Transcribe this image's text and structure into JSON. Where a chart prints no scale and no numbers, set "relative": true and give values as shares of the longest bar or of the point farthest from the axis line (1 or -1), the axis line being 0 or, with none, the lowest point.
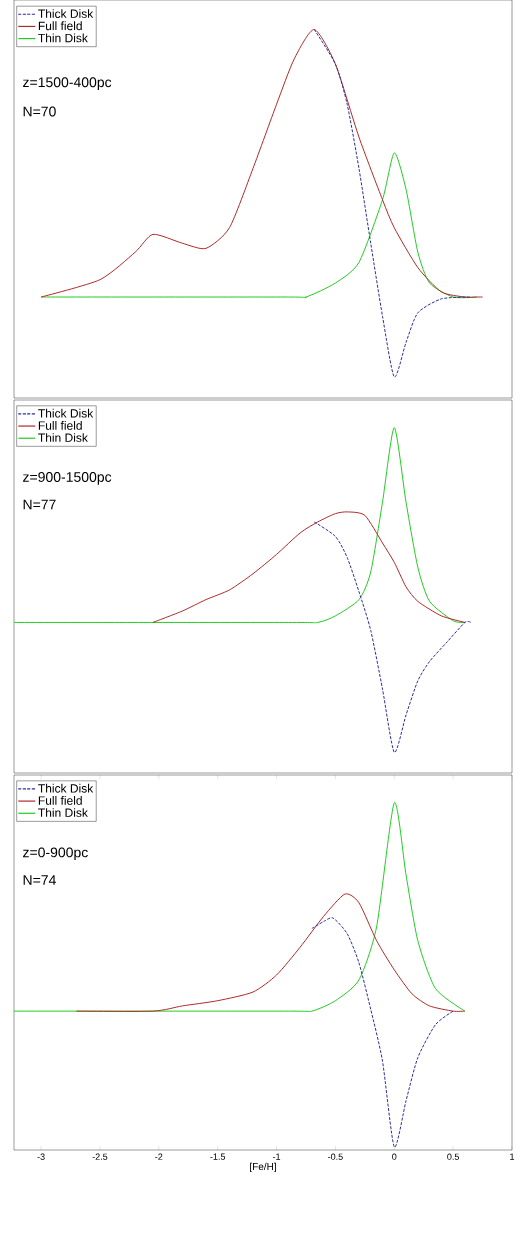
{
  "chart_data": [
    {
      "type": "line",
      "relative": true,
      "xlim": [
        -3.23,
        1
      ],
      "tick_labels": false,
      "legend": "top left",
      "annotations": [
        "z=1500-400pc",
        "N=70"
      ],
      "series": [
        {
          "name": "Thick Disk",
          "color": "#2c2c9e",
          "line_style": "dashed",
          "x": [
            -0.68,
            -0.5,
            -0.4,
            -0.3,
            -0.2,
            -0.1,
            0,
            0.1,
            0.2,
            0.4,
            0.65
          ],
          "values": [
            1.0,
            0.906,
            0.797,
            0.623,
            0.42,
            0.222,
            0.057,
            0.151,
            0.231,
            0.269,
            0.274
          ]
        },
        {
          "name": "Full field",
          "color": "#b02a2a",
          "line_style": "solid",
          "x": [
            -3.0,
            -2.5,
            -2.2,
            -2.05,
            -1.8,
            -1.6,
            -1.4,
            -1.2,
            -1.0,
            -0.85,
            -0.68,
            -0.5,
            -0.3,
            -0.1,
            0,
            0.2,
            0.4,
            0.6,
            0.7,
            0.75
          ],
          "values": [
            0.274,
            0.321,
            0.396,
            0.444,
            0.42,
            0.406,
            0.462,
            0.623,
            0.797,
            0.92,
            1.0,
            0.906,
            0.708,
            0.538,
            0.462,
            0.354,
            0.288,
            0.274,
            0.274,
            0.274
          ]
        },
        {
          "name": "Thin Disk",
          "color": "#22cc22",
          "line_style": "solid",
          "x": [
            -3.0,
            -0.9,
            -0.75,
            -0.5,
            -0.3,
            -0.1,
            0,
            0.1,
            0.2,
            0.3,
            0.5,
            0.7
          ],
          "values": [
            0.274,
            0.274,
            0.274,
            0.312,
            0.368,
            0.538,
            0.665,
            0.566,
            0.396,
            0.312,
            0.274,
            0.274
          ]
        }
      ]
    },
    {
      "type": "line",
      "relative": true,
      "xlim": [
        -3.23,
        1
      ],
      "tick_labels": false,
      "legend": "top left",
      "annotations": [
        "z=900-1500pc",
        "N=77"
      ],
      "series": [
        {
          "name": "Thick Disk",
          "color": "#2c2c9e",
          "line_style": "dashed",
          "x": [
            -0.68,
            -0.5,
            -0.4,
            -0.3,
            -0.2,
            -0.1,
            0,
            0.1,
            0.2,
            0.3,
            0.45,
            0.6,
            0.65
          ],
          "values": [
            0.727,
            0.685,
            0.624,
            0.525,
            0.413,
            0.243,
            0.06,
            0.168,
            0.267,
            0.323,
            0.38,
            0.436,
            0.436
          ]
        },
        {
          "name": "Full field",
          "color": "#b02a2a",
          "line_style": "solid",
          "x": [
            -2.05,
            -1.8,
            -1.6,
            -1.4,
            -1.2,
            -1.0,
            -0.8,
            -0.65,
            -0.5,
            -0.4,
            -0.25,
            -0.1,
            0,
            0.1,
            0.2,
            0.4,
            0.6
          ],
          "values": [
            0.436,
            0.469,
            0.502,
            0.53,
            0.577,
            0.633,
            0.695,
            0.727,
            0.751,
            0.756,
            0.746,
            0.666,
            0.61,
            0.539,
            0.497,
            0.455,
            0.436
          ]
        },
        {
          "name": "Thin Disk",
          "color": "#22cc22",
          "line_style": "solid",
          "x": [
            -3.23,
            -0.9,
            -0.65,
            -0.5,
            -0.3,
            -0.2,
            -0.1,
            0,
            0.1,
            0.2,
            0.3,
            0.5,
            0.6
          ],
          "values": [
            0.436,
            0.436,
            0.436,
            0.455,
            0.502,
            0.582,
            0.784,
            1.0,
            0.784,
            0.596,
            0.497,
            0.441,
            0.436
          ]
        }
      ]
    },
    {
      "type": "line",
      "relative": true,
      "xlim": [
        -3.23,
        1
      ],
      "tick_labels": "x",
      "legend": "top left",
      "xlabel": "[Fe/H]",
      "annotations": [
        "z=0-900pc",
        "N=74"
      ],
      "xticks": [
        -3,
        -2.5,
        -2,
        -1.5,
        -1,
        -0.5,
        0,
        0.5,
        1
      ],
      "series": [
        {
          "name": "Thick Disk",
          "color": "#2c2c9e",
          "line_style": "dashed",
          "x": [
            -0.7,
            -0.6,
            -0.52,
            -0.4,
            -0.3,
            -0.2,
            -0.1,
            0,
            0.1,
            0.2,
            0.35,
            0.5
          ],
          "values": [
            0.638,
            0.658,
            0.668,
            0.623,
            0.539,
            0.405,
            0.256,
            0.009,
            0.142,
            0.266,
            0.361,
            0.4
          ]
        },
        {
          "name": "Full field",
          "color": "#b02a2a",
          "line_style": "solid",
          "x": [
            -2.7,
            -2.05,
            -1.8,
            -1.5,
            -1.2,
            -1.0,
            -0.8,
            -0.6,
            -0.42,
            -0.3,
            -0.15,
            0,
            0.15,
            0.3,
            0.5,
            0.6
          ],
          "values": [
            0.4,
            0.4,
            0.415,
            0.43,
            0.455,
            0.504,
            0.584,
            0.673,
            0.737,
            0.712,
            0.603,
            0.519,
            0.45,
            0.415,
            0.4,
            0.4
          ]
        },
        {
          "name": "Thin Disk",
          "color": "#22cc22",
          "line_style": "solid",
          "x": [
            -3.23,
            -0.9,
            -0.7,
            -0.5,
            -0.3,
            -0.15,
            0,
            0.1,
            0.2,
            0.35,
            0.6
          ],
          "values": [
            0.4,
            0.4,
            0.4,
            0.43,
            0.49,
            0.643,
            1.0,
            0.792,
            0.603,
            0.465,
            0.4
          ]
        }
      ]
    }
  ]
}
